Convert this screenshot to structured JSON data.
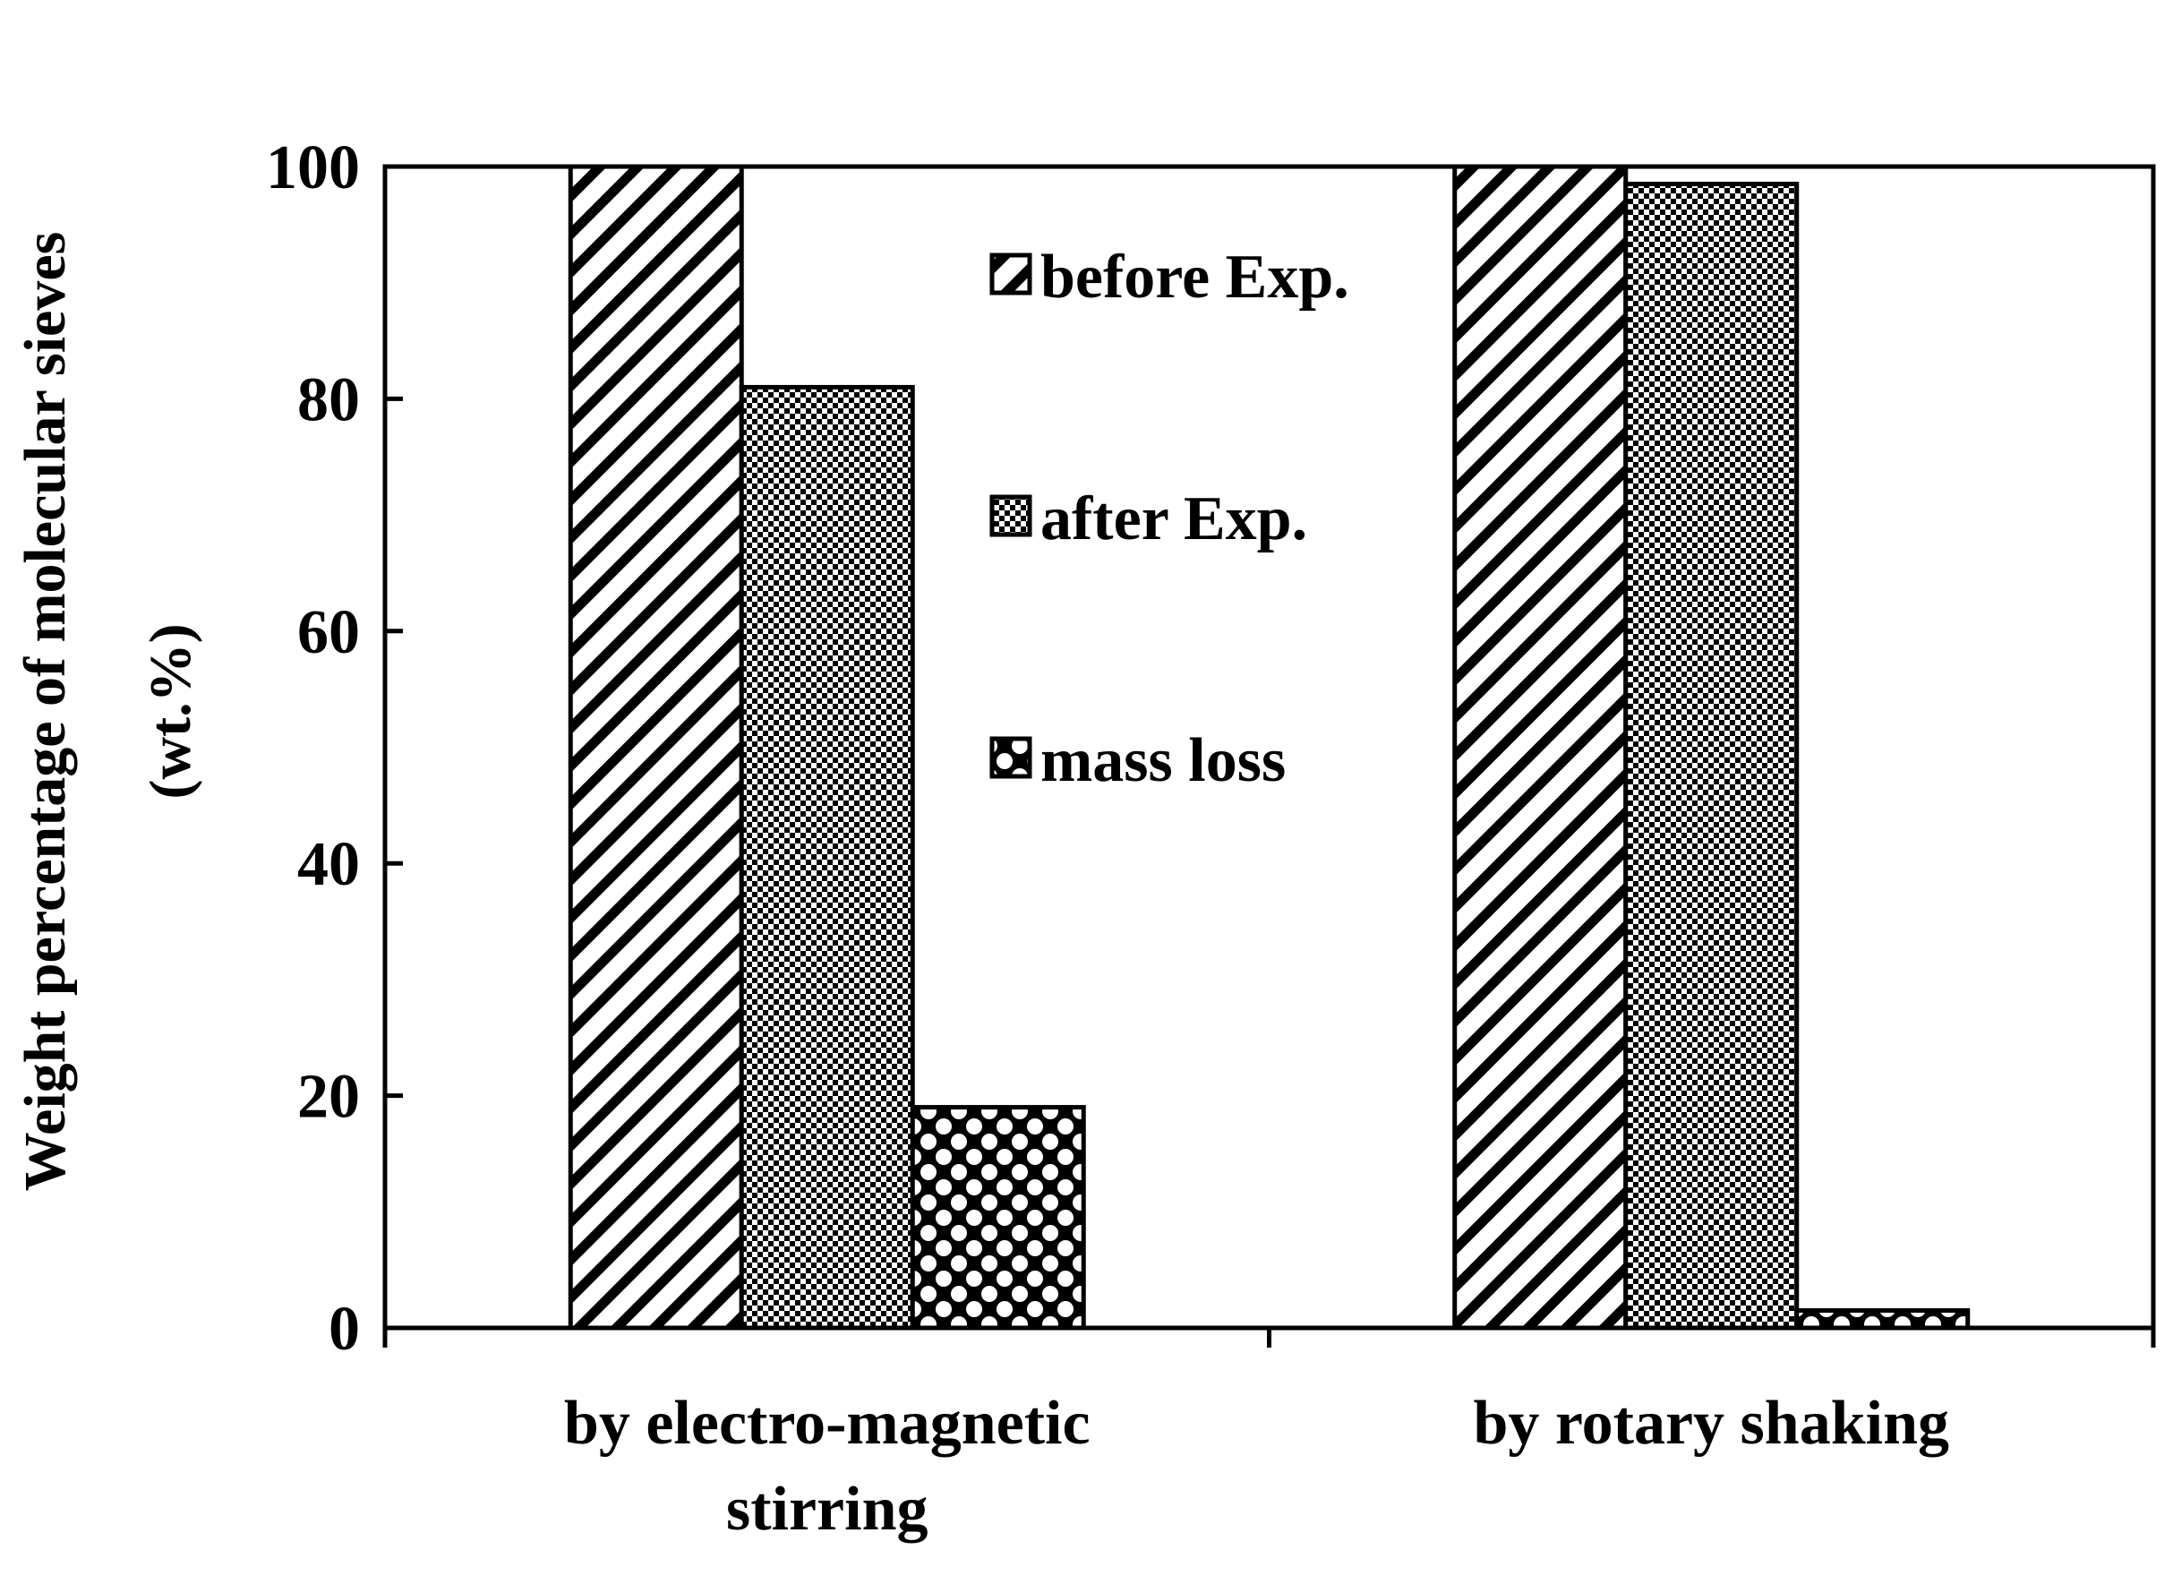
{
  "chart_data": {
    "type": "bar",
    "title": "",
    "xlabel": "",
    "ylabel": "Weight percentage of molecular sieves",
    "ylabel_unit": "(wt.%)",
    "ylim": [
      0,
      100
    ],
    "yticks": [
      "0",
      "20",
      "40",
      "60",
      "80",
      "100"
    ],
    "categories": [
      {
        "lines": [
          "by electro-magnetic",
          "stirring"
        ]
      },
      {
        "lines": [
          "by rotary shaking"
        ]
      }
    ],
    "series": [
      {
        "name": "before Exp.",
        "pattern": "diagonal-hatch",
        "values": [
          100,
          100
        ]
      },
      {
        "name": "after Exp.",
        "pattern": "fine-checker",
        "values": [
          81,
          98.5
        ]
      },
      {
        "name": "mass loss",
        "pattern": "dotted-checker",
        "values": [
          19,
          1.5
        ]
      }
    ],
    "legend_position": "top-center",
    "grid": false,
    "colors": {
      "ink": "#000000",
      "background": "#ffffff"
    }
  }
}
